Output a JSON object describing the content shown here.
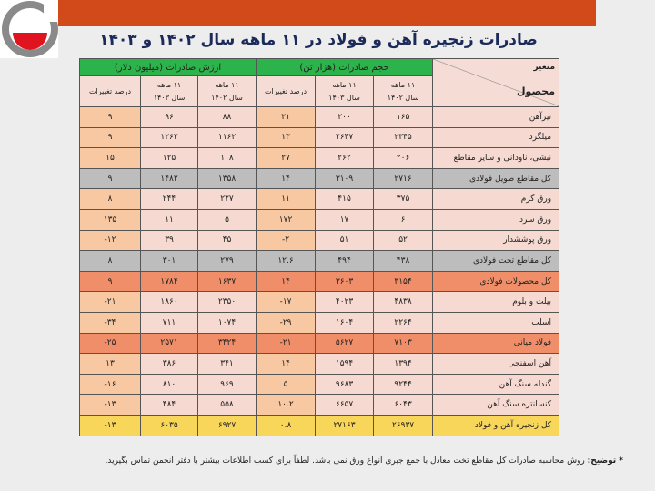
{
  "title": "صادرات زنجیره آهن و فولاد در ۱۱ ماهه سال ۱۴۰۲ و ۱۴۰۳",
  "header": {
    "variable": "متغیر",
    "product": "محصول",
    "volume_group": "حجم صادرات (هزار تن)",
    "value_group": "ارزش صادرات (میلیون دلار)",
    "col_1402_line1": "۱۱ ماهه",
    "col_1402_line2": "سال ۱۴۰۲",
    "col_1403_line1": "۱۱ ماهه",
    "col_1403_line2": "سال ۱۴۰۳",
    "change": "درصد تغییرات"
  },
  "colors": {
    "topbar": "#d24a1a",
    "header_green": "#2db34c",
    "subtotal_gray": "#bdbdbd",
    "total_orange": "#ef8e68",
    "grand_total_yellow": "#f8d65a"
  },
  "rows": [
    {
      "product": "تیرآهن",
      "style": "normal",
      "vol_1402": "۱۶۵",
      "vol_1403": "۲۰۰",
      "vol_change": "۲۱",
      "val_1402": "۸۸",
      "val_1403": "۹۶",
      "val_change": "۹"
    },
    {
      "product": "میلگرد",
      "style": "normal",
      "vol_1402": "۲۳۴۵",
      "vol_1403": "۲۶۴۷",
      "vol_change": "۱۳",
      "val_1402": "۱۱۶۲",
      "val_1403": "۱۲۶۲",
      "val_change": "۹"
    },
    {
      "product": "نبشی، ناودانی و سایر مقاطع",
      "style": "normal",
      "vol_1402": "۲۰۶",
      "vol_1403": "۲۶۲",
      "vol_change": "۲۷",
      "val_1402": "۱۰۸",
      "val_1403": "۱۲۵",
      "val_change": "۱۵"
    },
    {
      "product": "کل مقاطع طویل فولادی",
      "style": "gray",
      "vol_1402": "۲۷۱۶",
      "vol_1403": "۳۱۰۹",
      "vol_change": "۱۴",
      "val_1402": "۱۳۵۸",
      "val_1403": "۱۴۸۲",
      "val_change": "۹"
    },
    {
      "product": "ورق گرم",
      "style": "normal",
      "vol_1402": "۳۷۵",
      "vol_1403": "۴۱۵",
      "vol_change": "۱۱",
      "val_1402": "۲۲۷",
      "val_1403": "۲۴۴",
      "val_change": "۸"
    },
    {
      "product": "ورق سرد",
      "style": "normal",
      "vol_1402": "۶",
      "vol_1403": "۱۷",
      "vol_change": "۱۷۲",
      "val_1402": "۵",
      "val_1403": "۱۱",
      "val_change": "۱۳۵"
    },
    {
      "product": "ورق پوششدار",
      "style": "normal",
      "vol_1402": "۵۲",
      "vol_1403": "۵۱",
      "vol_change": "-۲",
      "val_1402": "۴۵",
      "val_1403": "۳۹",
      "val_change": "-۱۲"
    },
    {
      "product": "کل مقاطع تخت فولادی",
      "style": "gray",
      "vol_1402": "۴۳۸",
      "vol_1403": "۴۹۴",
      "vol_change": "۱۲.۶",
      "val_1402": "۲۷۹",
      "val_1403": "۳۰۱",
      "val_change": "۸"
    },
    {
      "product": "کل محصولات فولادی",
      "style": "hot",
      "vol_1402": "۳۱۵۴",
      "vol_1403": "۳۶۰۳",
      "vol_change": "۱۴",
      "val_1402": "۱۶۳۷",
      "val_1403": "۱۷۸۴",
      "val_change": "۹"
    },
    {
      "product": "بیلت و بلوم",
      "style": "normal",
      "vol_1402": "۴۸۳۸",
      "vol_1403": "۴۰۲۳",
      "vol_change": "-۱۷",
      "val_1402": "۲۳۵۰",
      "val_1403": "۱۸۶۰",
      "val_change": "-۲۱"
    },
    {
      "product": "اسلب",
      "style": "normal",
      "vol_1402": "۲۲۶۴",
      "vol_1403": "۱۶۰۴",
      "vol_change": "-۲۹",
      "val_1402": "۱۰۷۴",
      "val_1403": "۷۱۱",
      "val_change": "-۳۴"
    },
    {
      "product": "فولاد میانی",
      "style": "hot",
      "vol_1402": "۷۱۰۳",
      "vol_1403": "۵۶۲۷",
      "vol_change": "-۲۱",
      "val_1402": "۳۴۲۴",
      "val_1403": "۲۵۷۱",
      "val_change": "-۲۵"
    },
    {
      "product": "آهن اسفنجی",
      "style": "normal",
      "vol_1402": "۱۳۹۴",
      "vol_1403": "۱۵۹۴",
      "vol_change": "۱۴",
      "val_1402": "۳۴۱",
      "val_1403": "۳۸۶",
      "val_change": "۱۳"
    },
    {
      "product": "گندله سنگ آهن",
      "style": "normal",
      "vol_1402": "۹۲۴۴",
      "vol_1403": "۹۶۸۳",
      "vol_change": "۵",
      "val_1402": "۹۶۹",
      "val_1403": "۸۱۰",
      "val_change": "-۱۶"
    },
    {
      "product": "کنسانتره سنگ آهن",
      "style": "normal",
      "vol_1402": "۶۰۴۳",
      "vol_1403": "۶۶۵۷",
      "vol_change": "۱۰.۲",
      "val_1402": "۵۵۸",
      "val_1403": "۴۸۴",
      "val_change": "-۱۳"
    },
    {
      "product": "کل زنجیره آهن و فولاد",
      "style": "gold",
      "vol_1402": "۲۶۹۳۷",
      "vol_1403": "۲۷۱۶۳",
      "vol_change": "۰.۸",
      "val_1402": "۶۹۲۷",
      "val_1403": "۶۰۳۵",
      "val_change": "-۱۳"
    }
  ],
  "footnote": {
    "marker": "* توضیح:",
    "text": "روش محاسبه صادرات کل مقاطع تخت معادل با جمع جبری انواع ورق نمی باشد. لطفاً برای کسب اطلاعات بیشتر با دفتر انجمن تماس بگیرید."
  }
}
